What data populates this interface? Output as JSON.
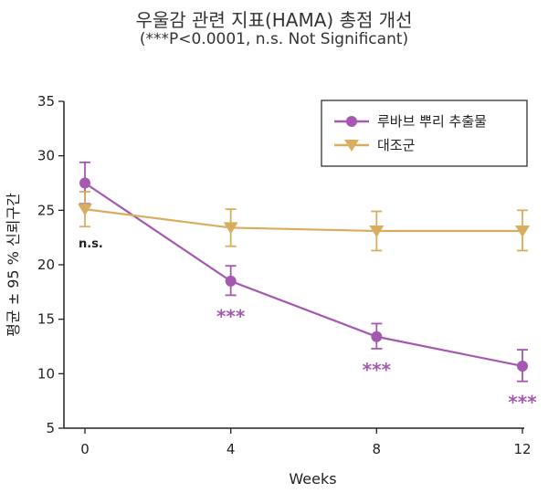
{
  "title": "우울감 관련 지표(HAMA) 총점 개선",
  "subtitle": "(***P<0.0001, n.s. Not Significant)",
  "colors": {
    "treatment": "#a558b0",
    "control": "#d9ad5e",
    "axis": "#222222"
  },
  "chart_data": {
    "type": "line",
    "xlabel": "Weeks",
    "ylabel": "평균 ± 95 % 신뢰구간",
    "x": [
      0,
      4,
      8,
      12
    ],
    "x_ticks": [
      "0",
      "4",
      "8",
      "12"
    ],
    "y_ticks": [
      "5",
      "10",
      "15",
      "20",
      "25",
      "30",
      "35"
    ],
    "xlim": [
      0,
      12
    ],
    "ylim": [
      5,
      35
    ],
    "grid": false,
    "legend_position": "top-right",
    "series": [
      {
        "name": "루바브 뿌리 추출물",
        "marker": "circle",
        "values": [
          27.5,
          18.5,
          13.4,
          10.7
        ],
        "err_low": [
          25.6,
          17.2,
          12.3,
          9.3
        ],
        "err_high": [
          29.4,
          19.9,
          14.6,
          12.2
        ]
      },
      {
        "name": "대조군",
        "marker": "triangle-down",
        "values": [
          25.1,
          23.4,
          23.1,
          23.1
        ],
        "err_low": [
          23.5,
          21.7,
          21.3,
          21.3
        ],
        "err_high": [
          26.7,
          25.1,
          24.9,
          25.0
        ]
      }
    ],
    "annotations": [
      {
        "x": 0,
        "label": "n.s."
      },
      {
        "x": 4,
        "label": "***"
      },
      {
        "x": 8,
        "label": "***"
      },
      {
        "x": 12,
        "label": "***"
      }
    ]
  }
}
